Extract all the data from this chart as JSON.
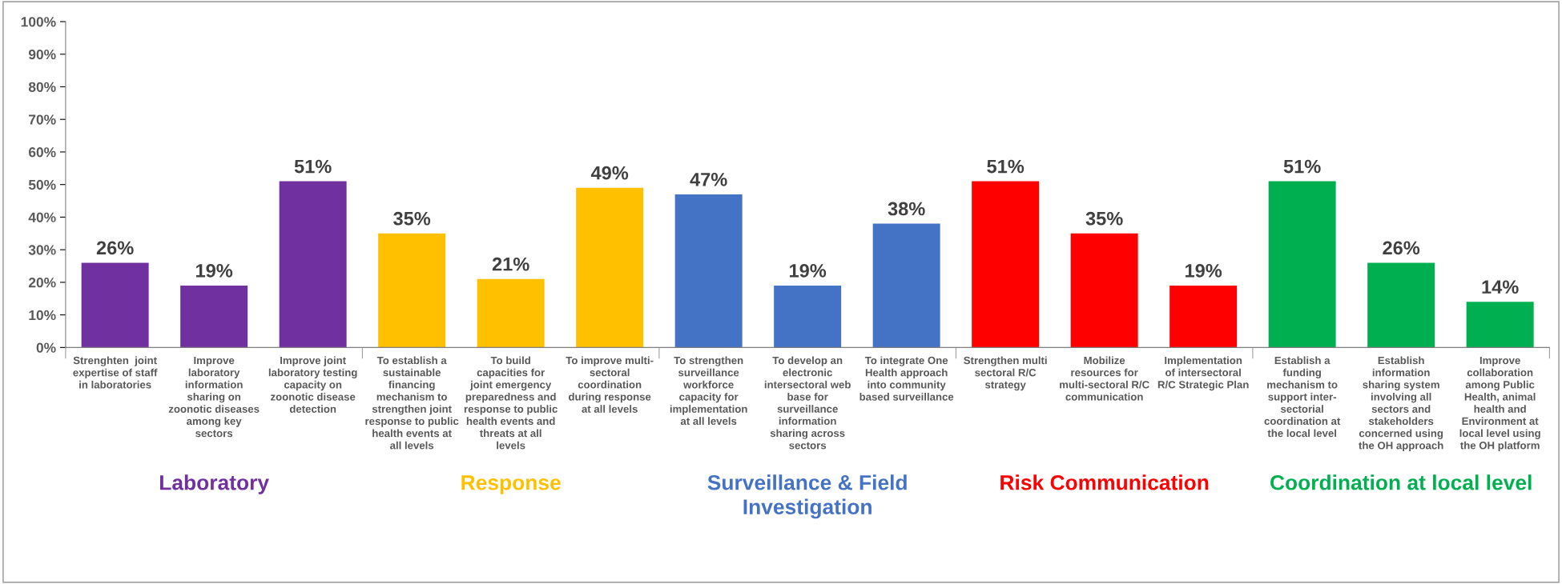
{
  "chart_data": {
    "type": "bar",
    "categories": [
      "Strenghten  joint\nexpertise of staff\nin laboratories",
      "Improve\nlaboratory\ninformation\nsharing on\nzoonotic diseases\namong key\nsectors",
      "Improve joint\nlaboratory testing\ncapacity on\nzoonotic disease\ndetection",
      "To establish a\nsustainable\nfinancing\nmechanism to\nstrengthen joint\nresponse to public\nhealth events at\nall levels",
      "To build\ncapacities for\njoint emergency\npreparedness and\nresponse to public\nhealth events and\nthreats at all\nlevels",
      "To improve multi-\nsectoral\ncoordination\nduring response\nat all levels",
      "To strengthen\nsurveillance\nworkforce\ncapacity for\nimplementation\nat all levels",
      "To develop an\nelectronic\nintersectoral web\nbase for\nsurveillance\ninformation\nsharing across\nsectors",
      "To integrate One\nHealth approach\ninto community\nbased surveillance",
      "Strengthen multi\nsectoral R/C\nstrategy",
      "Mobilize\nresources for\nmulti-sectoral R/C\ncommunication",
      "Implementation\nof intersectoral\nR/C Strategic Plan",
      "Establish a\nfunding\nmechanism to\nsupport inter-\nsectorial\ncoordination at\nthe local level",
      "Establish\ninformation\nsharing system\ninvolving all\nsectors and\nstakeholders\nconcerned using\nthe OH approach",
      "Improve\ncollaboration\namong Public\nHealth, animal\nhealth and\nEnvironment at\nlocal level using\nthe OH platform"
    ],
    "values": [
      26,
      19,
      51,
      35,
      21,
      49,
      47,
      19,
      38,
      51,
      35,
      19,
      51,
      26,
      14
    ],
    "value_labels": [
      "26%",
      "19%",
      "51%",
      "35%",
      "21%",
      "49%",
      "47%",
      "19%",
      "38%",
      "51%",
      "35%",
      "19%",
      "51%",
      "26%",
      "14%"
    ],
    "colors": [
      "#7030a0",
      "#7030a0",
      "#7030a0",
      "#ffc000",
      "#ffc000",
      "#ffc000",
      "#4472c4",
      "#4472c4",
      "#4472c4",
      "#ff0000",
      "#ff0000",
      "#ff0000",
      "#00b050",
      "#00b050",
      "#00b050"
    ],
    "ylim": [
      0,
      100
    ],
    "yticks": [
      {
        "value": 0,
        "label": "0%"
      },
      {
        "value": 10,
        "label": "10%"
      },
      {
        "value": 20,
        "label": "20%"
      },
      {
        "value": 30,
        "label": "30%"
      },
      {
        "value": 40,
        "label": "40%"
      },
      {
        "value": 50,
        "label": "50%"
      },
      {
        "value": 60,
        "label": "60%"
      },
      {
        "value": 70,
        "label": "70%"
      },
      {
        "value": 80,
        "label": "80%"
      },
      {
        "value": 90,
        "label": "90%"
      },
      {
        "value": 100,
        "label": "100%"
      }
    ],
    "annotations": [
      "Laboratory",
      "Response",
      "Surveillance & Field\nInvestigation",
      "Risk Communication",
      "Coordination at local level"
    ],
    "grid": false,
    "legend": false
  }
}
